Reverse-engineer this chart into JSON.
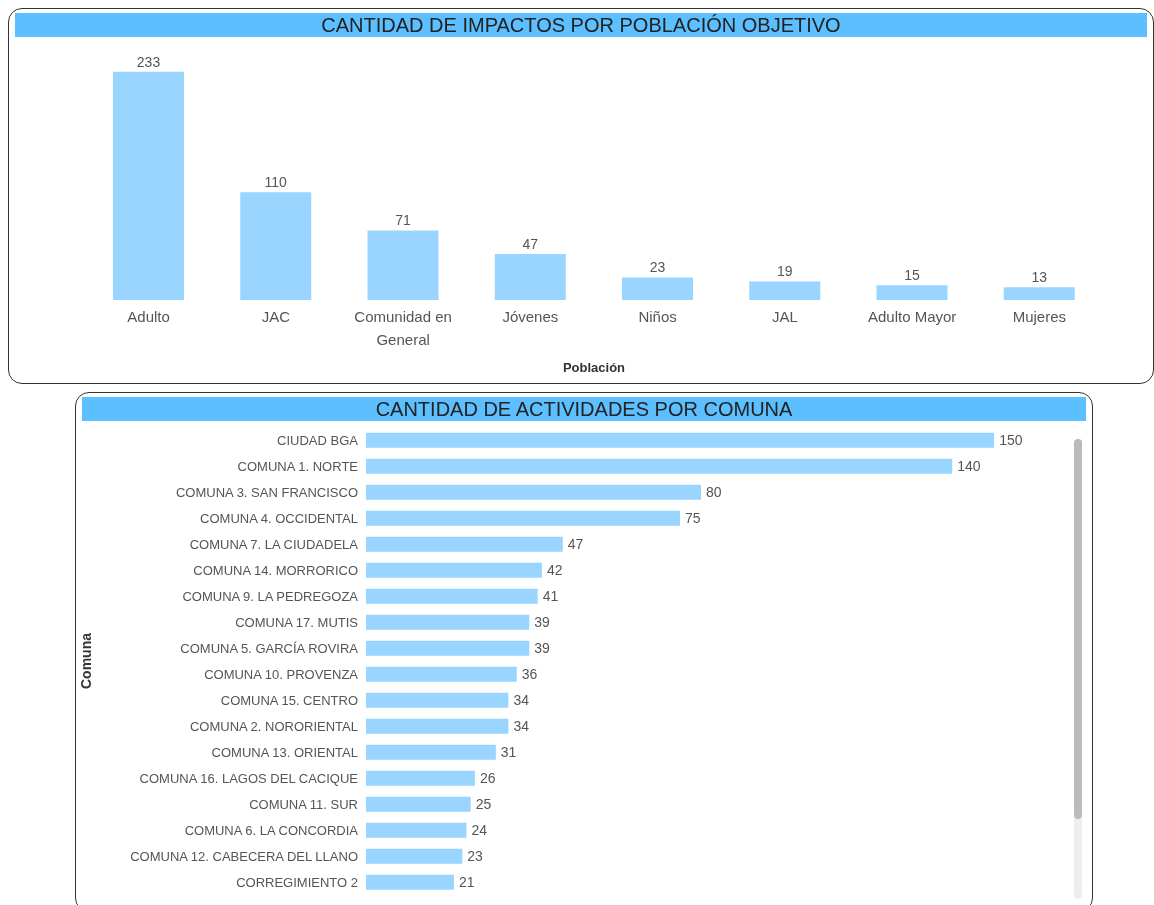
{
  "chart_data": [
    {
      "type": "bar",
      "title": "CANTIDAD DE IMPACTOS POR POBLACIÓN OBJETIVO",
      "xlabel": "Población",
      "categories": [
        "Adulto",
        "JAC",
        "Comunidad en General",
        "Jóvenes",
        "Niños",
        "JAL",
        "Adulto Mayor",
        "Mujeres"
      ],
      "values": [
        233,
        110,
        71,
        47,
        23,
        19,
        15,
        13
      ],
      "color": "#99d5ff",
      "data_labels": true
    },
    {
      "type": "bar",
      "orientation": "horizontal",
      "title": "CANTIDAD DE ACTIVIDADES POR COMUNA",
      "ylabel": "Comuna",
      "categories": [
        "CIUDAD BGA",
        "COMUNA 1. NORTE",
        "COMUNA 3. SAN FRANCISCO",
        "COMUNA 4. OCCIDENTAL",
        "COMUNA 7. LA CIUDADELA",
        "COMUNA 14. MORRORICO",
        "COMUNA 9. LA PEDREGOZA",
        "COMUNA 17. MUTIS",
        "COMUNA 5. GARCÍA ROVIRA",
        "COMUNA 10. PROVENZA",
        "COMUNA 15. CENTRO",
        "COMUNA 2. NORORIENTAL",
        "COMUNA 13. ORIENTAL",
        "COMUNA 16. LAGOS DEL CACIQUE",
        "COMUNA 11. SUR",
        "COMUNA 6. LA CONCORDIA",
        "COMUNA 12. CABECERA DEL LLANO",
        "CORREGIMIENTO 2"
      ],
      "values": [
        150,
        140,
        80,
        75,
        47,
        42,
        41,
        39,
        39,
        36,
        34,
        34,
        31,
        26,
        25,
        24,
        23,
        21
      ],
      "color": "#99d5ff",
      "data_labels": true
    }
  ]
}
